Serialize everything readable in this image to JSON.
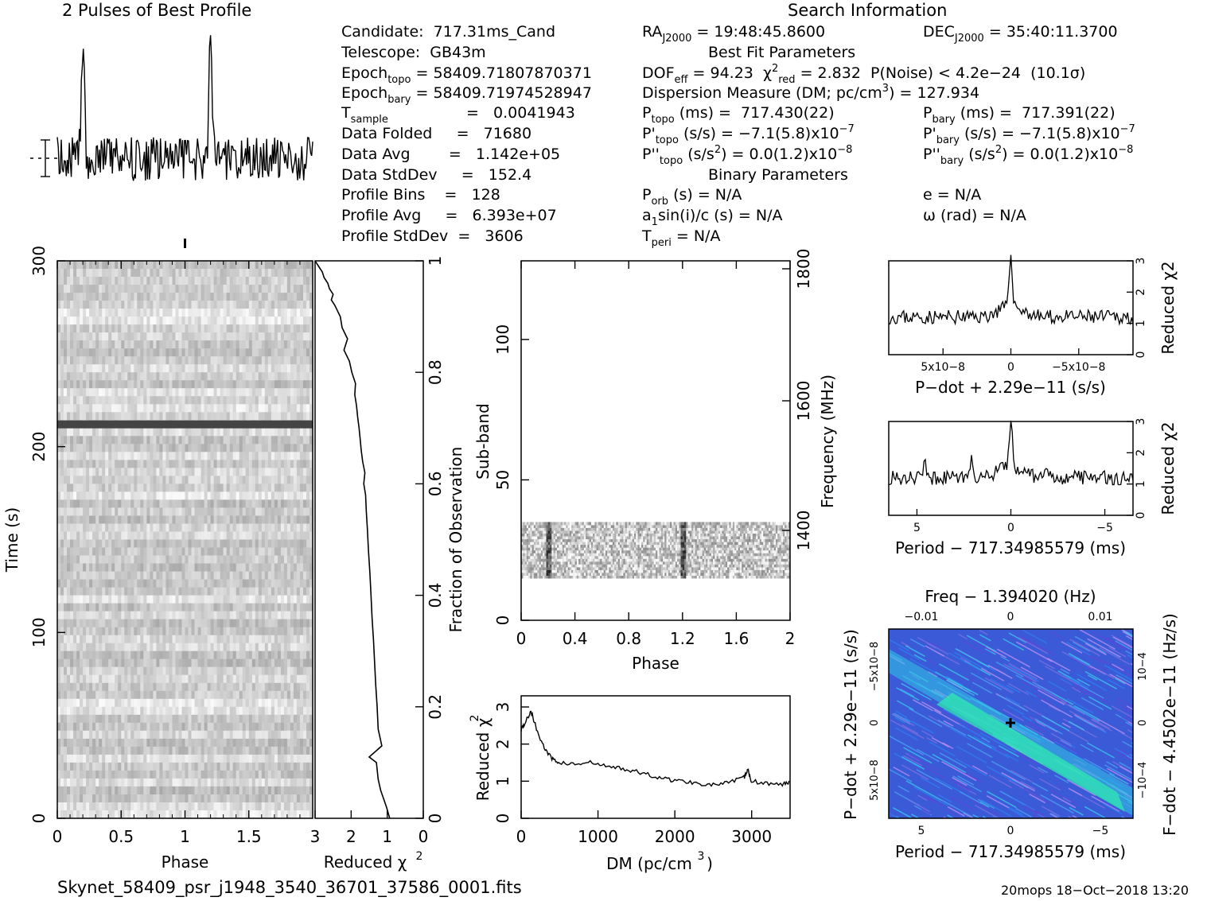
{
  "header": {
    "profile_title": "2 Pulses of Best Profile",
    "search_title": "Search Information",
    "best_fit_title": "Best Fit Parameters",
    "binary_title": "Binary Parameters"
  },
  "candidate_info": {
    "candidate": "Candidate:  717.31ms_Cand",
    "telescope": "Telescope:  GB43m",
    "epoch_topo_label": "Epoch",
    "epoch_topo_sub": "topo",
    "epoch_topo_value": " = 58409.71807870371",
    "epoch_bary_label": "Epoch",
    "epoch_bary_sub": "bary",
    "epoch_bary_value": " = 58409.71974528947",
    "t_sample_label": "T",
    "t_sample_sub": "sample",
    "t_sample_value": "=   0.0041943",
    "data_folded": "Data Folded     =   71680",
    "data_avg": "Data Avg        =   1.142e+05",
    "data_stddev": "Data StdDev     =   152.4",
    "profile_bins": "Profile Bins    =   128",
    "profile_avg": "Profile Avg     =   6.393e+07",
    "profile_stddev": "Profile StdDev  =   3606"
  },
  "search_info": {
    "ra_label": "RA",
    "ra_sub": "J2000",
    "ra_value": " = 19:48:45.8600",
    "dec_label": "DEC",
    "dec_sub": "J2000",
    "dec_value": " = 35:40:11.3700",
    "dof": "DOF",
    "dof_sub": "eff",
    "dof_value": " = 94.23  χ",
    "chi_sup": "2",
    "chi_sub": "red",
    "chi_value": " = 2.832  P(Noise) < 4.2e−24  (10.1σ)",
    "dm_text": "Dispersion Measure (DM; pc/cm",
    "dm_sup": "3",
    "dm_value": ") = 127.934",
    "p_topo": "P",
    "p_topo_sub": "topo",
    "p_topo_value": " (ms) =  717.430(22)",
    "p_bary": "P",
    "p_bary_sub": "bary",
    "p_bary_value": " (ms) =  717.391(22)",
    "pd_topo": "P'",
    "pd_topo_sub": "topo",
    "pd_topo_value": " (s/s) = −7.1(5.8)x10",
    "pd_topo_exp": "−7",
    "pd_bary": "P'",
    "pd_bary_sub": "bary",
    "pd_bary_value": " (s/s) = −7.1(5.8)x10",
    "pd_bary_exp": "−7",
    "pdd_topo": "P''",
    "pdd_topo_sub": "topo",
    "pdd_topo_value": " (s/s",
    "pdd_topo_sq": "2",
    "pdd_topo_rest": ") = 0.0(1.2)x10",
    "pdd_topo_exp": "−8",
    "pdd_bary": "P''",
    "pdd_bary_sub": "bary",
    "pdd_bary_value": " (s/s",
    "pdd_bary_sq": "2",
    "pdd_bary_rest": ") = 0.0(1.2)x10",
    "pdd_bary_exp": "−8",
    "p_orb": "P",
    "p_orb_sub": "orb",
    "p_orb_value": " (s) = N/A",
    "a1_text": "a",
    "a1_sub": "1",
    "a1_value": "sin(i)/c (s) = N/A",
    "t_peri": "T",
    "t_peri_sub": "peri",
    "t_peri_value": " = N/A",
    "e_value": "e = N/A",
    "omega_value": "ω (rad) = N/A"
  },
  "footer": {
    "filename": "Skynet_58409_psr_j1948_3540_36701_37586_0001.fits",
    "stamp": "20mops 18−Oct−2018 13:20"
  },
  "chart_data": [
    {
      "type": "line",
      "name": "profile",
      "title": "2 Pulses of Best Profile",
      "x_range": [
        0,
        2
      ],
      "peaks": [
        0.2,
        1.2
      ],
      "samples": 256
    },
    {
      "type": "heatmap",
      "name": "time-phase",
      "xlabel": "Phase",
      "ylabel": "Time (s)",
      "x_ticks": [
        "0",
        "0.5",
        "1",
        "1.5"
      ],
      "y_ticks": [
        "0",
        "100",
        "200",
        "300"
      ],
      "xlim": [
        0,
        2
      ],
      "ylim": [
        0,
        300
      ],
      "dark_rows_at_time": [
        212
      ],
      "pulse_marker_phase": 1.0
    },
    {
      "type": "line",
      "name": "reduced-chi2-vs-fraction",
      "xlabel": "Reduced χ2",
      "ylabel": "Fraction of Observation",
      "x_ticks": [
        "3",
        "2",
        "1",
        "0"
      ],
      "y_ticks": [
        "0",
        "0.2",
        "0.4",
        "0.6",
        "0.8",
        "1"
      ],
      "xlim": [
        3,
        0
      ],
      "ylim": [
        0,
        1
      ],
      "x": [
        0.93,
        1.02,
        1.18,
        1.25,
        1.3,
        1.5,
        1.15,
        1.25,
        1.28,
        1.32,
        1.35,
        1.38,
        1.42,
        1.45,
        1.48,
        1.52,
        1.55,
        1.58,
        1.6,
        1.65,
        1.62,
        1.68,
        1.72,
        1.75,
        1.78,
        1.82,
        1.85,
        1.9,
        1.88,
        1.98,
        2.05,
        2.2,
        2.1,
        2.25,
        2.3,
        2.45,
        2.55,
        2.5,
        2.6,
        2.65,
        2.75,
        2.8,
        2.85,
        2.9,
        2.95,
        3.0
      ],
      "y": [
        0.0,
        0.02,
        0.05,
        0.07,
        0.1,
        0.11,
        0.13,
        0.16,
        0.2,
        0.24,
        0.28,
        0.32,
        0.36,
        0.4,
        0.44,
        0.48,
        0.52,
        0.55,
        0.58,
        0.6,
        0.62,
        0.64,
        0.66,
        0.68,
        0.7,
        0.72,
        0.74,
        0.76,
        0.78,
        0.8,
        0.82,
        0.84,
        0.86,
        0.88,
        0.9,
        0.92,
        0.93,
        0.94,
        0.95,
        0.96,
        0.97,
        0.98,
        0.985,
        0.99,
        0.995,
        1.0
      ]
    },
    {
      "type": "heatmap",
      "name": "subband-phase",
      "xlabel": "Phase",
      "ylabel": "Sub-band",
      "y2label": "Frequency (MHz)",
      "x_ticks": [
        "0",
        "0.4",
        "0.8",
        "1.2",
        "1.6",
        "2"
      ],
      "y_ticks": [
        "0",
        "50",
        "100"
      ],
      "y2_ticks": [
        "1400",
        "1600",
        "1800"
      ],
      "xlim": [
        0,
        2
      ],
      "ylim": [
        0,
        128
      ],
      "filled_subbands": [
        15,
        35
      ],
      "pulse_phase": [
        0.2,
        1.2
      ]
    },
    {
      "type": "line",
      "name": "dm-chi2",
      "xlabel": "DM (pc/cm3)",
      "ylabel": "Reduced χ2",
      "x_ticks": [
        "0",
        "1000",
        "2000",
        "3000"
      ],
      "y_ticks": [
        "0",
        "1",
        "2",
        "3"
      ],
      "xlim": [
        0,
        3500
      ],
      "ylim": [
        0,
        3.3
      ],
      "x": [
        0,
        60,
        128,
        200,
        300,
        400,
        500,
        700,
        900,
        1100,
        1300,
        1500,
        1700,
        1900,
        2100,
        2300,
        2500,
        2700,
        2900,
        2950,
        3000,
        3200,
        3400,
        3500
      ],
      "y": [
        2.4,
        2.6,
        2.9,
        2.4,
        1.9,
        1.6,
        1.5,
        1.45,
        1.5,
        1.4,
        1.35,
        1.25,
        1.15,
        1.05,
        1.0,
        0.95,
        0.9,
        0.95,
        1.1,
        1.3,
        1.0,
        0.95,
        0.9,
        1.0
      ]
    },
    {
      "type": "line",
      "name": "pdot-chi2",
      "xlabel": "P−dot + 2.29e−11 (s/s)",
      "ylabel": "Reduced χ2",
      "x_ticks": [
        "5x10−8",
        "0",
        "−5x10−8"
      ],
      "y_ticks": [
        "0",
        "1",
        "2",
        "3"
      ],
      "xlim": [
        9e-08,
        -9e-08
      ],
      "ylim": [
        0,
        3
      ],
      "peak": [
        0,
        2.9
      ],
      "baseline": 1.2
    },
    {
      "type": "line",
      "name": "period-chi2",
      "xlabel": "Period − 717.34985579 (ms)",
      "ylabel": "Reduced χ2",
      "x_ticks": [
        "5",
        "0",
        "−5"
      ],
      "y_ticks": [
        "0",
        "1",
        "2",
        "3"
      ],
      "xlim": [
        6.5,
        -6.5
      ],
      "ylim": [
        0,
        3
      ],
      "peak": [
        0,
        2.8
      ],
      "baseline": 1.2
    },
    {
      "type": "heatmap",
      "name": "period-pdot",
      "title": "Freq − 1.394020 (Hz)",
      "xlabel": "Period − 717.34985579 (ms)",
      "ylabel": "P−dot + 2.29e−11 (s/s)",
      "y2label": "F−dot − 4.4502e−11 (Hz/s)",
      "x_ticks": [
        "5",
        "0",
        "−5"
      ],
      "x2_ticks": [
        "−0.01",
        "0",
        "0.01"
      ],
      "y_ticks": [
        "5x10−8",
        "0",
        "−5x10−8"
      ],
      "y2_ticks": [
        "−10−4",
        "0",
        "10−4"
      ],
      "best": [
        0,
        0
      ]
    }
  ]
}
